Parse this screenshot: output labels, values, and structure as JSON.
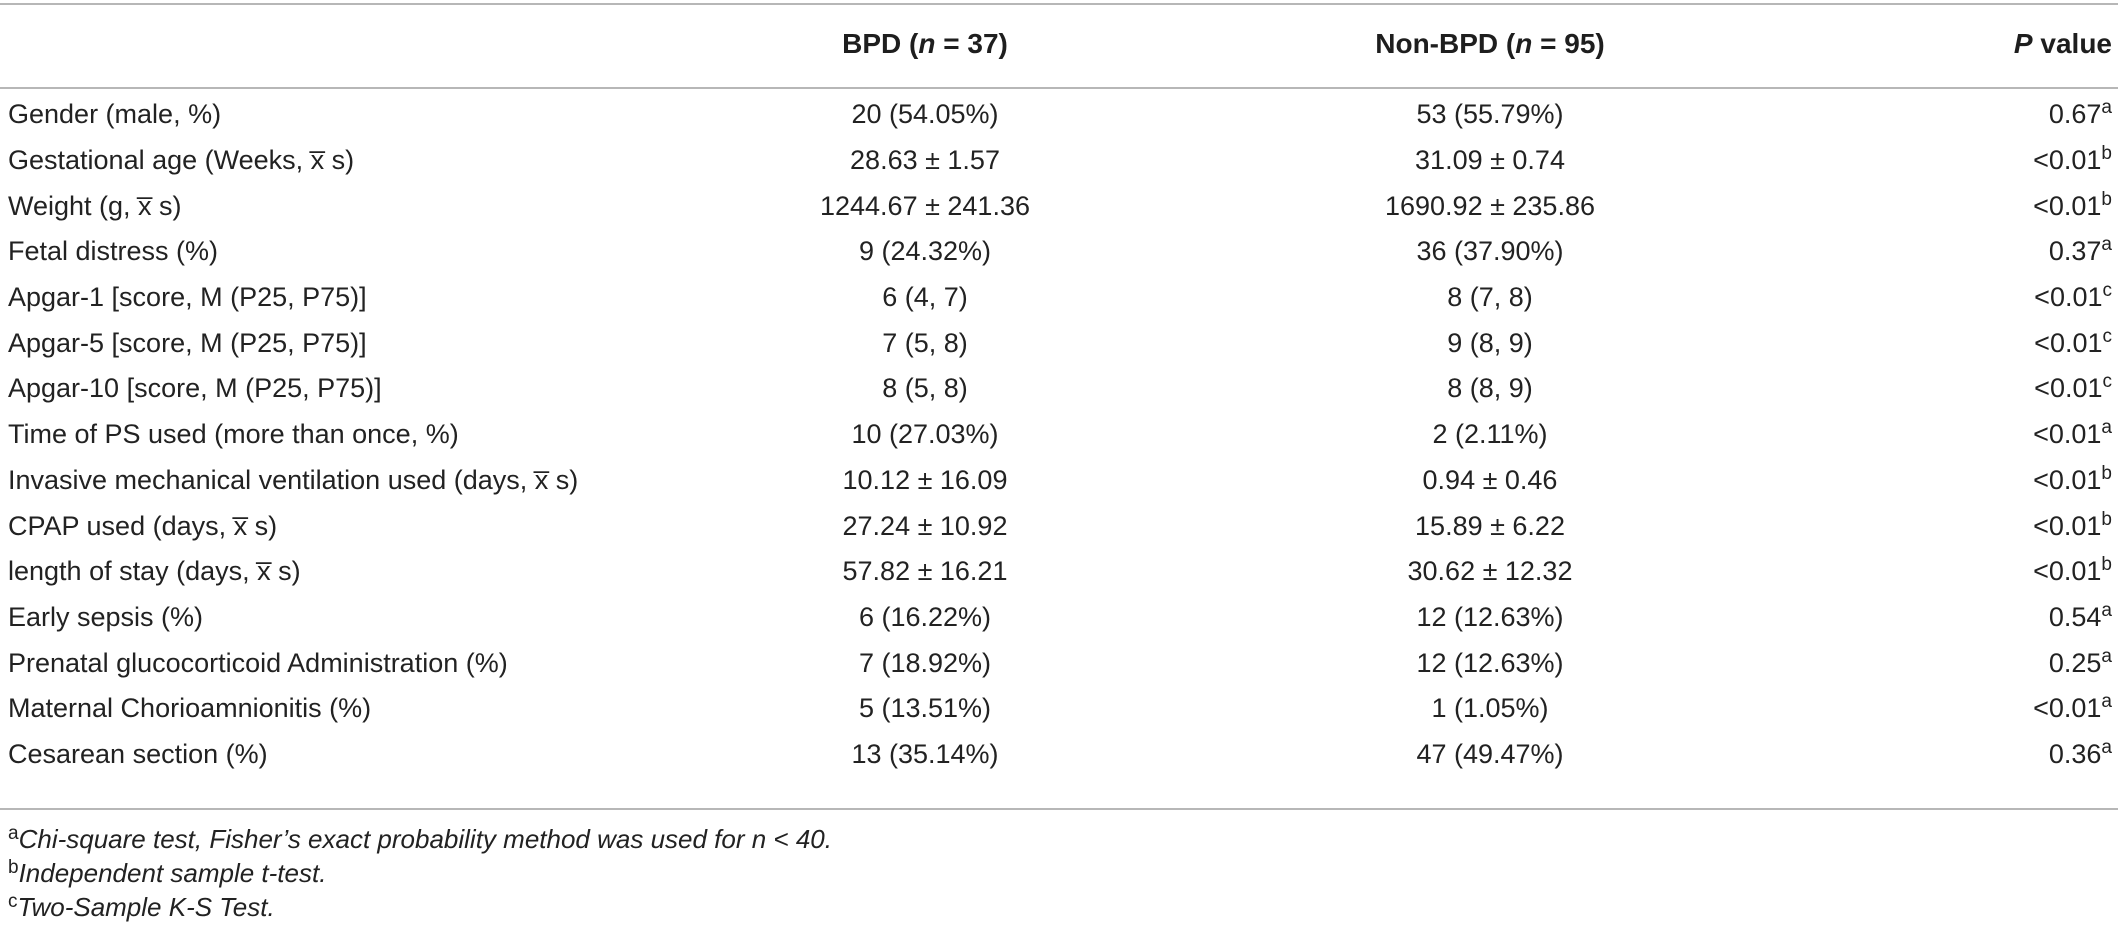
{
  "table": {
    "columns": [
      "",
      "BPD (n = 37)",
      "Non-BPD (n = 95)",
      "P value"
    ],
    "header": {
      "col1_main": "BPD (",
      "col1_var": "n",
      "col1_rest": " = 37)",
      "col2_main": "Non-BPD (",
      "col2_var": "n",
      "col2_rest": " = 95)",
      "col3_var": "P",
      "col3_rest": " value"
    },
    "rows": [
      {
        "label": "Gender (male, %)",
        "bpd": "20 (54.05%)",
        "non_bpd": "53 (55.79%)",
        "p": "0.67",
        "sup": "a"
      },
      {
        "label": "Gestational age (Weeks, x̅  s)",
        "bpd": "28.63 ± 1.57",
        "non_bpd": "31.09 ± 0.74",
        "p": "<0.01",
        "sup": "b"
      },
      {
        "label": "Weight (g, x̅  s)",
        "bpd": "1244.67 ± 241.36",
        "non_bpd": "1690.92 ± 235.86",
        "p": "<0.01",
        "sup": "b"
      },
      {
        "label": "Fetal distress (%)",
        "bpd": "9 (24.32%)",
        "non_bpd": "36 (37.90%)",
        "p": "0.37",
        "sup": "a"
      },
      {
        "label": "Apgar-1 [score, M (P25, P75)]",
        "bpd": "6 (4, 7)",
        "non_bpd": "8 (7, 8)",
        "p": "<0.01",
        "sup": "c"
      },
      {
        "label": "Apgar-5 [score, M (P25, P75)]",
        "bpd": "7 (5, 8)",
        "non_bpd": "9 (8, 9)",
        "p": "<0.01",
        "sup": "c"
      },
      {
        "label": "Apgar-10 [score, M (P25, P75)]",
        "bpd": "8 (5, 8)",
        "non_bpd": "8 (8, 9)",
        "p": "<0.01",
        "sup": "c"
      },
      {
        "label": "Time of PS used (more than once, %)",
        "bpd": "10 (27.03%)",
        "non_bpd": "2 (2.11%)",
        "p": "<0.01",
        "sup": "a"
      },
      {
        "label": "Invasive mechanical ventilation used (days, x̅  s)",
        "bpd": "10.12 ± 16.09",
        "non_bpd": "0.94 ± 0.46",
        "p": "<0.01",
        "sup": "b"
      },
      {
        "label": "CPAP used (days, x̅  s)",
        "bpd": "27.24 ± 10.92",
        "non_bpd": "15.89 ± 6.22",
        "p": "<0.01",
        "sup": "b"
      },
      {
        "label": "length of stay (days, x̅  s)",
        "bpd": "57.82 ± 16.21",
        "non_bpd": "30.62 ± 12.32",
        "p": "<0.01",
        "sup": "b"
      },
      {
        "label": "Early sepsis (%)",
        "bpd": "6 (16.22%)",
        "non_bpd": "12 (12.63%)",
        "p": "0.54",
        "sup": "a"
      },
      {
        "label": "Prenatal glucocorticoid Administration (%)",
        "bpd": "7 (18.92%)",
        "non_bpd": "12 (12.63%)",
        "p": "0.25",
        "sup": "a"
      },
      {
        "label": "Maternal Chorioamnionitis (%)",
        "bpd": "5 (13.51%)",
        "non_bpd": "1 (1.05%)",
        "p": "<0.01",
        "sup": "a"
      },
      {
        "label": "Cesarean section (%)",
        "bpd": "13 (35.14%)",
        "non_bpd": "47 (49.47%)",
        "p": "0.36",
        "sup": "a"
      }
    ]
  },
  "footnotes": [
    {
      "mark": "a",
      "text": "Chi-square test, Fisher’s exact probability method was used for n < 40."
    },
    {
      "mark": "b",
      "text": "Independent sample t-test."
    },
    {
      "mark": "c",
      "text": "Two-Sample K-S Test."
    }
  ]
}
